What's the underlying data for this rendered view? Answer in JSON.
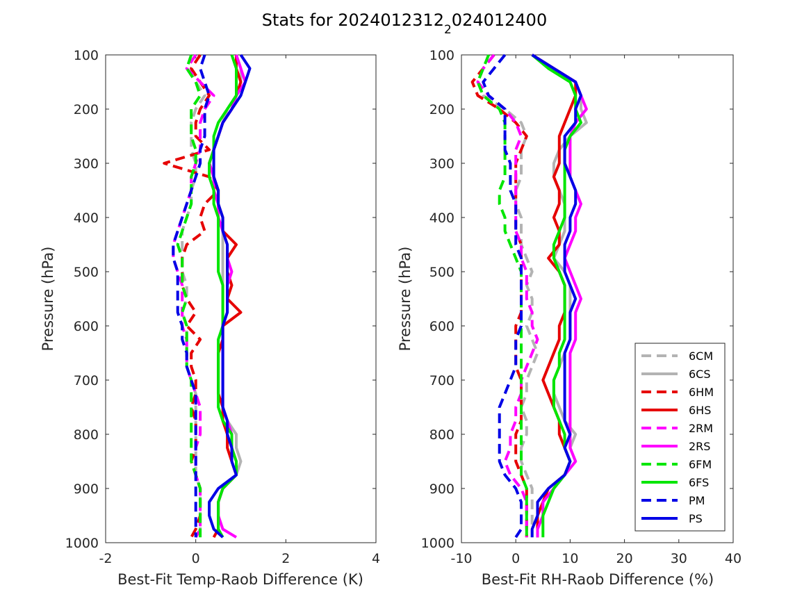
{
  "figure": {
    "title_main": "Stats for 2024012312",
    "title_sub": "2",
    "title_tail": "024012400"
  },
  "legend": {
    "entries": [
      {
        "label": "6CM",
        "color": "#b3b3b3",
        "dashed": true
      },
      {
        "label": "6CS",
        "color": "#b3b3b3",
        "dashed": false
      },
      {
        "label": "6HM",
        "color": "#e60000",
        "dashed": true
      },
      {
        "label": "6HS",
        "color": "#e60000",
        "dashed": false
      },
      {
        "label": "2RM",
        "color": "#ff00ff",
        "dashed": true
      },
      {
        "label": "2RS",
        "color": "#ff00ff",
        "dashed": false
      },
      {
        "label": "6FM",
        "color": "#00e600",
        "dashed": true
      },
      {
        "label": "6FS",
        "color": "#00e600",
        "dashed": false
      },
      {
        "label": "PM",
        "color": "#0000e6",
        "dashed": true
      },
      {
        "label": "PS",
        "color": "#0000e6",
        "dashed": false
      }
    ]
  },
  "chart_data": [
    {
      "type": "line",
      "xlabel": "Best-Fit Temp-Raob Difference (K)",
      "ylabel": "Pressure (hPa)",
      "xlim": [
        -2,
        4
      ],
      "ylim": [
        100,
        1000
      ],
      "y_reversed": true,
      "xticks": [
        "-2",
        "0",
        "2",
        "4"
      ],
      "yticks": [
        "100",
        "200",
        "300",
        "400",
        "500",
        "600",
        "700",
        "800",
        "900",
        "1000"
      ],
      "y": [
        100,
        125,
        150,
        175,
        200,
        225,
        250,
        275,
        300,
        325,
        350,
        375,
        400,
        425,
        450,
        475,
        500,
        525,
        550,
        575,
        600,
        625,
        650,
        675,
        700,
        725,
        750,
        775,
        800,
        825,
        850,
        875,
        900,
        925,
        950,
        975,
        990
      ],
      "series": [
        {
          "name": "6CM",
          "color": "#b3b3b3",
          "dashed": true,
          "values": [
            0.1,
            -0.1,
            0.0,
            0.2,
            0.0,
            -0.1,
            -0.1,
            -0.1,
            0.0,
            0.0,
            -0.1,
            -0.1,
            -0.2,
            -0.3,
            -0.3,
            -0.3,
            -0.3,
            -0.2,
            -0.2,
            -0.3,
            -0.2,
            -0.2,
            -0.2,
            -0.2,
            -0.1,
            0.0,
            0.0,
            0.0,
            0.0,
            0.0,
            0.0,
            0.0,
            0.1,
            0.1,
            0.1,
            0.1,
            0.0
          ]
        },
        {
          "name": "6CS",
          "color": "#b3b3b3",
          "dashed": false,
          "values": [
            0.9,
            1.0,
            1.0,
            0.9,
            0.7,
            0.6,
            0.5,
            0.4,
            0.3,
            0.4,
            0.4,
            0.5,
            0.5,
            0.6,
            0.6,
            0.6,
            0.6,
            0.6,
            0.6,
            0.6,
            0.6,
            0.6,
            0.6,
            0.6,
            0.6,
            0.6,
            0.6,
            0.7,
            0.9,
            0.9,
            1.0,
            0.9,
            0.6,
            0.5,
            0.5,
            0.5,
            0.6
          ]
        },
        {
          "name": "6HM",
          "color": "#e60000",
          "dashed": true,
          "values": [
            0.1,
            -0.1,
            0.1,
            0.3,
            0.1,
            0.0,
            0.0,
            0.3,
            -0.7,
            0.3,
            0.5,
            0.2,
            0.1,
            0.2,
            -0.2,
            -0.3,
            -0.3,
            -0.3,
            -0.2,
            0.0,
            -0.2,
            0.1,
            -0.1,
            -0.1,
            0.0,
            0.0,
            -0.1,
            0.0,
            0.0,
            0.0,
            -0.1,
            0.0,
            0.1,
            0.1,
            0.1,
            0.0,
            -0.1
          ]
        },
        {
          "name": "6HS",
          "color": "#e60000",
          "dashed": false,
          "values": [
            0.9,
            0.9,
            1.0,
            0.9,
            0.8,
            0.6,
            0.5,
            0.4,
            0.3,
            0.4,
            0.5,
            0.5,
            0.6,
            0.6,
            0.9,
            0.7,
            0.7,
            0.8,
            0.7,
            1.0,
            0.6,
            0.6,
            0.5,
            0.5,
            0.5,
            0.5,
            0.6,
            0.6,
            0.7,
            0.7,
            0.8,
            0.9,
            0.6,
            0.5,
            0.5,
            0.5,
            0.4
          ]
        },
        {
          "name": "2RM",
          "color": "#ff00ff",
          "dashed": true,
          "values": [
            0.0,
            -0.2,
            0.1,
            0.4,
            0.2,
            0.1,
            0.1,
            0.1,
            0.0,
            -0.1,
            -0.1,
            -0.2,
            -0.3,
            -0.4,
            -0.5,
            -0.5,
            -0.4,
            -0.3,
            -0.3,
            -0.3,
            -0.3,
            -0.2,
            -0.2,
            -0.2,
            -0.1,
            0.0,
            0.1,
            0.1,
            0.1,
            0.0,
            0.0,
            0.0,
            0.1,
            0.1,
            0.1,
            0.1,
            0.0
          ]
        },
        {
          "name": "2RS",
          "color": "#ff00ff",
          "dashed": false,
          "values": [
            0.9,
            1.0,
            1.1,
            0.9,
            0.8,
            0.6,
            0.5,
            0.4,
            0.3,
            0.4,
            0.4,
            0.5,
            0.5,
            0.6,
            0.7,
            0.7,
            0.8,
            0.7,
            0.7,
            0.7,
            0.6,
            0.6,
            0.6,
            0.6,
            0.6,
            0.6,
            0.6,
            0.7,
            0.8,
            0.8,
            0.9,
            0.9,
            0.6,
            0.5,
            0.5,
            0.6,
            0.9
          ]
        },
        {
          "name": "6FM",
          "color": "#00e600",
          "dashed": true,
          "values": [
            -0.1,
            -0.2,
            0.0,
            0.1,
            -0.1,
            -0.1,
            -0.1,
            0.0,
            0.0,
            -0.1,
            -0.1,
            -0.1,
            -0.2,
            -0.3,
            -0.4,
            -0.3,
            -0.3,
            -0.3,
            -0.2,
            -0.3,
            -0.2,
            -0.2,
            -0.2,
            -0.2,
            -0.1,
            -0.1,
            -0.1,
            -0.1,
            -0.1,
            -0.1,
            -0.1,
            0.0,
            0.1,
            0.1,
            0.1,
            0.1,
            0.1
          ]
        },
        {
          "name": "6FS",
          "color": "#00e600",
          "dashed": false,
          "values": [
            0.8,
            0.9,
            0.9,
            0.9,
            0.7,
            0.5,
            0.4,
            0.4,
            0.3,
            0.3,
            0.4,
            0.4,
            0.5,
            0.5,
            0.5,
            0.5,
            0.5,
            0.6,
            0.6,
            0.6,
            0.6,
            0.5,
            0.5,
            0.5,
            0.5,
            0.5,
            0.5,
            0.6,
            0.8,
            0.8,
            0.9,
            0.9,
            0.6,
            0.5,
            0.5,
            0.5,
            0.6
          ]
        },
        {
          "name": "PM",
          "color": "#0000e6",
          "dashed": true,
          "values": [
            0.2,
            0.1,
            0.2,
            0.3,
            0.2,
            0.2,
            0.2,
            0.1,
            0.1,
            0.0,
            -0.1,
            -0.2,
            -0.3,
            -0.4,
            -0.5,
            -0.5,
            -0.4,
            -0.4,
            -0.4,
            -0.4,
            -0.3,
            -0.3,
            -0.2,
            -0.2,
            -0.1,
            0.0,
            0.0,
            0.0,
            0.0,
            0.0,
            0.0,
            0.0,
            0.0,
            0.0,
            0.0,
            0.0,
            0.0
          ]
        },
        {
          "name": "PS",
          "color": "#0000e6",
          "dashed": false,
          "values": [
            1.0,
            1.2,
            1.1,
            1.0,
            0.8,
            0.6,
            0.5,
            0.4,
            0.4,
            0.4,
            0.5,
            0.5,
            0.6,
            0.6,
            0.7,
            0.7,
            0.7,
            0.7,
            0.7,
            0.7,
            0.6,
            0.6,
            0.6,
            0.6,
            0.6,
            0.6,
            0.6,
            0.7,
            0.7,
            0.8,
            0.8,
            0.9,
            0.5,
            0.3,
            0.3,
            0.4,
            0.6
          ]
        }
      ]
    },
    {
      "type": "line",
      "xlabel": "Best-Fit RH-Raob Difference (%)",
      "ylabel": "Pressure (hPa)",
      "xlim": [
        -10,
        40
      ],
      "ylim": [
        100,
        1000
      ],
      "y_reversed": true,
      "xticks": [
        "-10",
        "0",
        "10",
        "20",
        "30",
        "40"
      ],
      "yticks": [
        "100",
        "200",
        "300",
        "400",
        "500",
        "600",
        "700",
        "800",
        "900",
        "1000"
      ],
      "legend_position": "bottom-right",
      "y": [
        100,
        125,
        150,
        175,
        200,
        225,
        250,
        275,
        300,
        325,
        350,
        375,
        400,
        425,
        450,
        475,
        500,
        525,
        550,
        575,
        600,
        625,
        650,
        675,
        700,
        725,
        750,
        775,
        800,
        825,
        850,
        875,
        900,
        925,
        950,
        975,
        990
      ],
      "series": [
        {
          "name": "6CM",
          "color": "#b3b3b3",
          "dashed": true,
          "values": [
            -4,
            -6,
            -7,
            -6,
            -2,
            1,
            2,
            1,
            1,
            1,
            0,
            0,
            1,
            1,
            1,
            2,
            3,
            2,
            3,
            3,
            2,
            3,
            4,
            3,
            2,
            2,
            1,
            2,
            2,
            1,
            1,
            2,
            3,
            3,
            3,
            3,
            3
          ]
        },
        {
          "name": "6CS",
          "color": "#b3b3b3",
          "dashed": false,
          "values": [
            3,
            7,
            11,
            12,
            12,
            13,
            10,
            8,
            7,
            7,
            8,
            9,
            9,
            9,
            8,
            7,
            9,
            10,
            10,
            10,
            10,
            10,
            9,
            8,
            7,
            7,
            8,
            9,
            11,
            10,
            11,
            9,
            6,
            5,
            4,
            4,
            4
          ]
        },
        {
          "name": "6HM",
          "color": "#e60000",
          "dashed": true,
          "values": [
            -4,
            -6,
            -8,
            -7,
            -3,
            0,
            2,
            1,
            0,
            0,
            0,
            0,
            0,
            0,
            1,
            1,
            1,
            1,
            1,
            1,
            0,
            0,
            0,
            0,
            1,
            1,
            1,
            1,
            0,
            0,
            0,
            1,
            2,
            2,
            2,
            2,
            2
          ]
        },
        {
          "name": "6HS",
          "color": "#e60000",
          "dashed": false,
          "values": [
            3,
            7,
            11,
            11,
            10,
            9,
            8,
            8,
            8,
            7,
            8,
            8,
            7,
            8,
            8,
            6,
            8,
            9,
            9,
            9,
            8,
            8,
            7,
            6,
            5,
            6,
            7,
            8,
            8,
            9,
            10,
            9,
            6,
            5,
            4,
            4,
            4
          ]
        },
        {
          "name": "2RM",
          "color": "#ff00ff",
          "dashed": true,
          "values": [
            -4,
            -6,
            -7,
            -5,
            -2,
            0,
            1,
            0,
            0,
            0,
            0,
            0,
            0,
            0,
            1,
            1,
            2,
            2,
            2,
            3,
            3,
            4,
            3,
            2,
            1,
            1,
            0,
            0,
            -1,
            -1,
            -2,
            -1,
            1,
            2,
            2,
            2,
            2
          ]
        },
        {
          "name": "2RS",
          "color": "#ff00ff",
          "dashed": false,
          "values": [
            3,
            7,
            11,
            12,
            13,
            11,
            10,
            10,
            10,
            10,
            11,
            12,
            11,
            11,
            10,
            9,
            10,
            11,
            12,
            11,
            11,
            11,
            10,
            10,
            10,
            10,
            10,
            10,
            10,
            10,
            11,
            9,
            7,
            5,
            5,
            4,
            4
          ]
        },
        {
          "name": "6FM",
          "color": "#00e600",
          "dashed": true,
          "values": [
            -5,
            -6,
            -7,
            -6,
            -3,
            -2,
            -2,
            -2,
            -2,
            -2,
            -3,
            -3,
            -2,
            -2,
            -1,
            0,
            1,
            1,
            1,
            1,
            1,
            1,
            1,
            1,
            1,
            1,
            1,
            1,
            1,
            1,
            1,
            1,
            2,
            2,
            2,
            2,
            2
          ]
        },
        {
          "name": "6FS",
          "color": "#00e600",
          "dashed": false,
          "values": [
            3,
            6,
            10,
            11,
            11,
            12,
            10,
            9,
            9,
            9,
            9,
            9,
            9,
            8,
            7,
            7,
            8,
            9,
            9,
            9,
            9,
            9,
            8,
            8,
            7,
            7,
            7,
            8,
            9,
            9,
            10,
            9,
            7,
            6,
            5,
            5,
            5
          ]
        },
        {
          "name": "PM",
          "color": "#0000e6",
          "dashed": true,
          "values": [
            -2,
            -4,
            -6,
            -5,
            -2,
            -2,
            -2,
            -2,
            -1,
            -1,
            -1,
            0,
            0,
            0,
            0,
            1,
            1,
            1,
            1,
            1,
            1,
            0,
            0,
            0,
            -1,
            -2,
            -3,
            -3,
            -3,
            -3,
            -3,
            -2,
            0,
            1,
            1,
            1,
            0
          ]
        },
        {
          "name": "PS",
          "color": "#0000e6",
          "dashed": false,
          "values": [
            3,
            7,
            11,
            12,
            11,
            11,
            9,
            9,
            9,
            10,
            11,
            11,
            10,
            10,
            9,
            9,
            9,
            10,
            11,
            10,
            10,
            10,
            9,
            9,
            9,
            9,
            9,
            9,
            10,
            9,
            10,
            9,
            6,
            4,
            4,
            3,
            3
          ]
        }
      ]
    }
  ]
}
